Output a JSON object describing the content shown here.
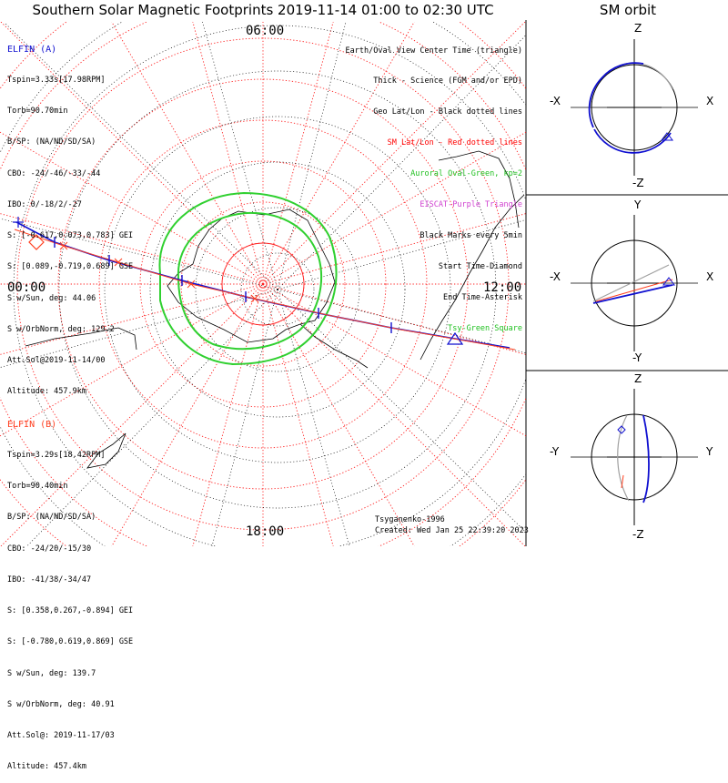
{
  "title": "Southern Solar Magnetic Footprints 2019-11-14 01:00 to 02:30 UTC",
  "sm_title": "SM orbit",
  "elfin_a": {
    "name": "ELFIN (A)",
    "lines": [
      "Tspin=3.33s[17.98RPM]",
      "Torb=90.70min",
      "B/SP: (NA/ND/SD/SA)",
      "CBO: -24/-46/-33/-44",
      "IBO: 0/-18/2/-27",
      "S: [-0.617,0.073,0.783] GEI",
      "S: [0.089,-0.719,0.689] GSE",
      "S w/Sun, deg: 44.06",
      "S w/OrbNorm, deg: 129.2",
      "Att.Sol@2019-11-14/00",
      "Altitude: 457.9km"
    ],
    "color": "#1010d0"
  },
  "elfin_b": {
    "name": "ELFIN (B)",
    "lines": [
      "Tspin=3.29s[18.42RPM]",
      "Torb=90.40min",
      "B/SP: (NA/ND/SD/SA)",
      "CBO: -24/20/-15/30",
      "IBO: -41/38/-34/47",
      "S: [0.358,0.267,-0.894] GEI",
      "S: [-0.780,0.619,0.869] GSE",
      "S w/Sun, deg: 139.7",
      "S w/OrbNorm, deg: 40.91",
      "Att.Sol@: 2019-11-17/03",
      "Altitude: 457.4km"
    ],
    "color": "#ff4020"
  },
  "legend": [
    {
      "text": "Earth/Oval View Center Time (triangle)",
      "color": "#000000"
    },
    {
      "text": "Thick - Science (FGM and/or EPD)",
      "color": "#000000"
    },
    {
      "text": "Geo Lat/Lon - Black dotted lines",
      "color": "#000000"
    },
    {
      "text": "SM Lat/Lon - Red dotted lines",
      "color": "#ff0000"
    },
    {
      "text": "Auroral Oval-Green, kp=2",
      "color": "#20c020"
    },
    {
      "text": "EISCAT-Purple Triangle",
      "color": "#d040d0"
    },
    {
      "text": "Black Marks every 5min",
      "color": "#000000"
    },
    {
      "text": "Start Time-Diamond",
      "color": "#000000"
    },
    {
      "text": "End Time-Asterisk",
      "color": "#000000"
    },
    {
      "text": "Tsy-Green Square",
      "color": "#20c020"
    }
  ],
  "footer": {
    "model": "Tsyganenko-1996",
    "created": "Created: Wed Jan 25 22:39:20 2023"
  },
  "mlt_labels": {
    "top": "06:00",
    "left": "00:00",
    "right": "12:00",
    "bottom": "18:00"
  },
  "panels": {
    "xz": {
      "top": "Z",
      "bottom": "-Z",
      "left": "-X",
      "right": "X"
    },
    "xy": {
      "top": "Y",
      "bottom": "-Y",
      "left": "-X",
      "right": "X"
    },
    "yz": {
      "top": "Z",
      "bottom": "-Z",
      "left": "-Y",
      "right": "Y"
    }
  },
  "colors": {
    "sm_grid": "#ff2020",
    "geo_grid": "#000000",
    "oval": "#30d030",
    "track_a": "#1010d0",
    "track_b": "#ff4020",
    "orbit_gray": "#a0a0a0"
  },
  "chart_data": {
    "type": "map-polar",
    "projection": "southern magnetic polar, MLT clock",
    "sm_latitude_rings": 8,
    "mlt_spokes_hours": [
      0,
      1,
      2,
      3,
      4,
      5,
      6,
      7,
      8,
      9,
      10,
      11,
      12,
      13,
      14,
      15,
      16,
      17,
      18,
      19,
      20,
      21,
      22,
      23
    ],
    "tracks": [
      {
        "name": "ELFIN (A)",
        "color": "#1010d0"
      },
      {
        "name": "ELFIN (B)",
        "color": "#ff4020"
      }
    ]
  }
}
